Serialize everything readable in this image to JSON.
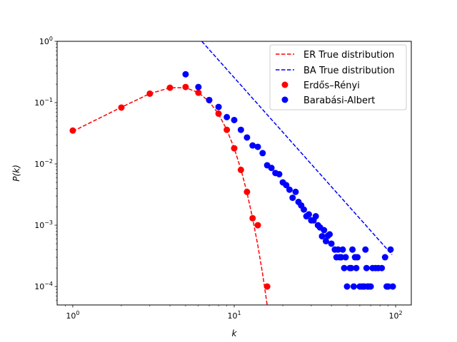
{
  "chart_data": {
    "type": "scatter",
    "xscale": "log",
    "yscale": "log",
    "xlim": [
      0.8,
      125
    ],
    "ylim": [
      5e-05,
      1
    ],
    "xlabel": "k",
    "ylabel": "P(k)",
    "xticks": [
      {
        "value": 1,
        "label": "10",
        "exp": "0"
      },
      {
        "value": 10,
        "label": "10",
        "exp": "1"
      },
      {
        "value": 100,
        "label": "10",
        "exp": "2"
      }
    ],
    "yticks": [
      {
        "value": 0.0001,
        "label": "10",
        "exp": "−4"
      },
      {
        "value": 0.001,
        "label": "10",
        "exp": "−3"
      },
      {
        "value": 0.01,
        "label": "10",
        "exp": "−2"
      },
      {
        "value": 0.1,
        "label": "10",
        "exp": "−1"
      },
      {
        "value": 1,
        "label": "10",
        "exp": "0"
      }
    ],
    "legend_position": "top-right",
    "series": [
      {
        "name": "ER True distribution",
        "kind": "line",
        "style": "dashed",
        "color": "#ff0000",
        "x": [
          1,
          2,
          3,
          4,
          5,
          6,
          7,
          8,
          9,
          10,
          11,
          12,
          13,
          14,
          15,
          16,
          17
        ],
        "y": [
          0.034,
          0.084,
          0.14,
          0.175,
          0.175,
          0.146,
          0.104,
          0.065,
          0.036,
          0.018,
          0.0082,
          0.0034,
          0.0013,
          0.00047,
          0.00016,
          5e-05,
          1.5e-05
        ]
      },
      {
        "name": "BA True distribution",
        "kind": "line",
        "style": "dashed",
        "color": "#0000ff",
        "x": [
          6.3,
          95
        ],
        "y": [
          1.0,
          0.00033
        ]
      },
      {
        "name": "Erdős–Rényi",
        "kind": "points",
        "color": "#ff0000",
        "x": [
          1,
          2,
          3,
          4,
          5,
          6,
          7,
          8,
          9,
          10,
          11,
          12,
          13,
          14,
          16
        ],
        "y": [
          0.035,
          0.083,
          0.14,
          0.175,
          0.18,
          0.145,
          0.11,
          0.066,
          0.036,
          0.018,
          0.008,
          0.0035,
          0.0013,
          0.001,
          0.0001
        ]
      },
      {
        "name": "Barabási-Albert",
        "kind": "points",
        "color": "#0000ff",
        "x": [
          5,
          6,
          7,
          8,
          9,
          10,
          11,
          12,
          13,
          14,
          15,
          16,
          17,
          18,
          19,
          20,
          21,
          22,
          23,
          24,
          25,
          26,
          27,
          28,
          29,
          30,
          31,
          32,
          33,
          34,
          35,
          36,
          37,
          38,
          39,
          40,
          42,
          43,
          44,
          45,
          46,
          47,
          48,
          49,
          50,
          52,
          53,
          54,
          55,
          56,
          57,
          58,
          60,
          62,
          64,
          65,
          66,
          67,
          68,
          70,
          72,
          75,
          78,
          82,
          86,
          88,
          90,
          93,
          96
        ],
        "y": [
          0.29,
          0.18,
          0.11,
          0.085,
          0.058,
          0.052,
          0.036,
          0.027,
          0.02,
          0.019,
          0.015,
          0.0095,
          0.0086,
          0.0071,
          0.0068,
          0.005,
          0.0045,
          0.0038,
          0.0028,
          0.0035,
          0.0024,
          0.0021,
          0.0018,
          0.0014,
          0.0015,
          0.0012,
          0.0012,
          0.0014,
          0.001,
          0.00092,
          0.00066,
          0.00083,
          0.00055,
          0.00067,
          0.00071,
          0.0005,
          0.0004,
          0.0003,
          0.0004,
          0.0003,
          0.0003,
          0.0004,
          0.0002,
          0.0003,
          0.0001,
          0.0002,
          0.0002,
          0.0004,
          0.0001,
          0.0003,
          0.0002,
          0.0003,
          0.0001,
          0.0001,
          0.0001,
          0.0004,
          0.0002,
          0.0001,
          0.0001,
          0.0001,
          0.0002,
          0.0002,
          0.0002,
          0.0002,
          0.0003,
          0.0001,
          0.0001,
          0.0004,
          0.0001
        ]
      }
    ]
  }
}
